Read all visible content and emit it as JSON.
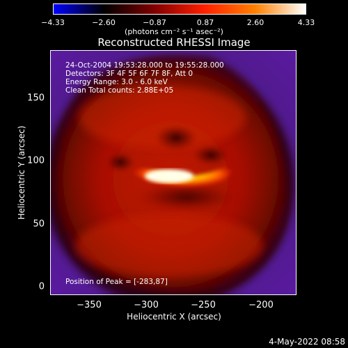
{
  "colorbar": {
    "ticks": [
      "−4.33",
      "−2.60",
      "−0.87",
      "0.87",
      "2.60",
      "4.33"
    ],
    "units": "(photons cm⁻² s⁻¹ asec⁻²)",
    "colors": [
      "#0000ff",
      "#000000",
      "#800000",
      "#ff2000",
      "#ff8000",
      "#ffffff"
    ]
  },
  "title": "Reconstructed RHESSI Image",
  "info": {
    "line1": "24-Oct-2004 19:53:28.000 to 19:55:28.000",
    "line2": "Detectors: 3F 4F 5F 6F 7F 8F, Att 0",
    "line3": "Energy Range: 3.0 - 6.0 keV",
    "line4": "Clean    Total counts: 2.88E+05",
    "peak": "Position of Peak = [-283,87]"
  },
  "axes": {
    "xlabel": "Heliocentric X (arcsec)",
    "ylabel": "Heliocentric Y (arcsec)",
    "xticks": [
      "−350",
      "−300",
      "−250",
      "−200"
    ],
    "yticks": [
      "150",
      "100",
      "50",
      "0"
    ]
  },
  "datestamp": "4-May-2022 08:58"
}
